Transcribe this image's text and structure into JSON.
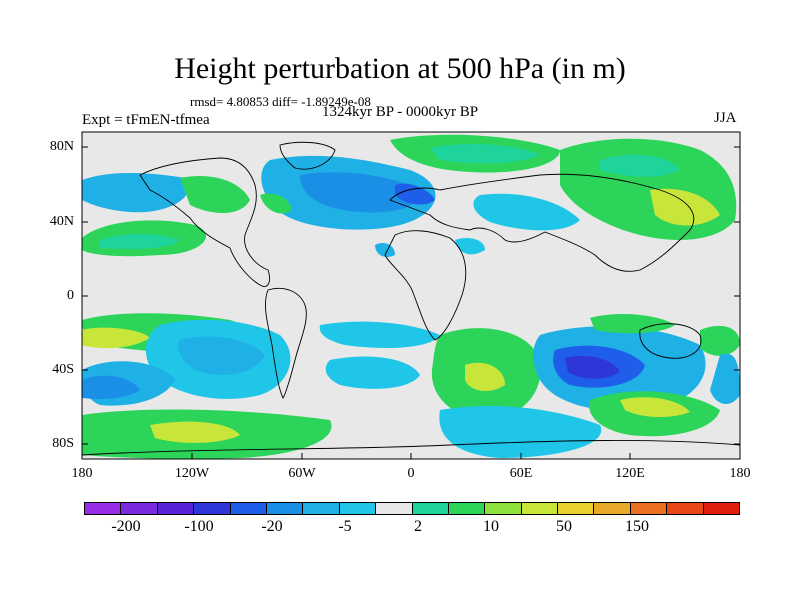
{
  "title": "Height perturbation at 500 hPa (in m)",
  "stats": "rmsd= 4.80853 diff= -1.89249e-08",
  "experiment": "Expt = tFmEN-tfmea",
  "period": "1324kyr BP - 0000kyr BP",
  "season": "JJA",
  "lat_labels": [
    "80N",
    "40N",
    "0",
    "40S",
    "80S"
  ],
  "lon_labels": [
    "180",
    "120W",
    "60W",
    "0",
    "60E",
    "120E",
    "180"
  ],
  "colorbar": {
    "colors": [
      "#9a2ee6",
      "#7a2be0",
      "#5a22d6",
      "#2e36d8",
      "#1f5ee8",
      "#1a8fe6",
      "#1fb0e6",
      "#20c6e8",
      "#e8e8e8",
      "#1ed49a",
      "#2cd45a",
      "#8ee03a",
      "#c8e63a",
      "#e8d030",
      "#e8a828",
      "#e87020",
      "#e84818",
      "#e01e10"
    ],
    "labels": [
      "-200",
      "-100",
      "-20",
      "-5",
      "2",
      "10",
      "50",
      "150"
    ]
  },
  "regions": {
    "pos_strong": "#c8e63a",
    "pos_mid": "#2cd45a",
    "pos_weak": "#1ed49a",
    "neutral": "#e8e8e8",
    "neg_weak": "#20c6e8",
    "neg_mid": "#1fb0e6",
    "neg_strong": "#1a8fe6",
    "neg_deep": "#1f5ee8",
    "neg_core": "#2e36d8"
  }
}
